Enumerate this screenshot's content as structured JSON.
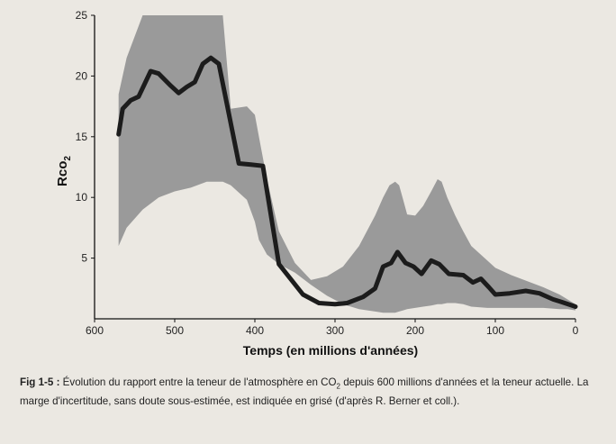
{
  "chart_data": {
    "type": "area",
    "xlabel": "Temps (en millions d'années)",
    "ylabel_main": "Rco",
    "ylabel_sub": "2",
    "xlim": [
      600,
      0
    ],
    "ylim": [
      0,
      25
    ],
    "x_ticks": [
      600,
      500,
      400,
      300,
      200,
      100,
      0
    ],
    "y_ticks": [
      5,
      10,
      15,
      20,
      25
    ],
    "grid": false,
    "fill_color": "#9a9a9a",
    "line_color": "#1c1c1c",
    "central_line": {
      "x": [
        570,
        565,
        555,
        545,
        530,
        520,
        505,
        495,
        485,
        475,
        465,
        455,
        445,
        420,
        405,
        390,
        370,
        340,
        320,
        300,
        285,
        265,
        250,
        240,
        230,
        222,
        212,
        202,
        192,
        180,
        170,
        158,
        140,
        128,
        118,
        108,
        100,
        82,
        62,
        45,
        28,
        18,
        0
      ],
      "y": [
        15.2,
        17.3,
        18.0,
        18.3,
        20.4,
        20.2,
        19.2,
        18.6,
        19.1,
        19.5,
        21.0,
        21.5,
        21.0,
        12.8,
        12.7,
        12.6,
        4.5,
        2.0,
        1.3,
        1.2,
        1.3,
        1.8,
        2.5,
        4.3,
        4.6,
        5.5,
        4.6,
        4.3,
        3.7,
        4.8,
        4.5,
        3.7,
        3.6,
        3.0,
        3.3,
        2.6,
        2.0,
        2.1,
        2.3,
        2.1,
        1.6,
        1.4,
        1.0
      ]
    },
    "uncertainty_band": {
      "x": [
        570,
        560,
        540,
        520,
        500,
        480,
        460,
        440,
        430,
        410,
        400,
        395,
        385,
        370,
        350,
        330,
        310,
        290,
        270,
        250,
        240,
        232,
        225,
        220,
        215,
        210,
        200,
        190,
        180,
        172,
        167,
        160,
        150,
        140,
        130,
        110,
        100,
        80,
        60,
        40,
        20,
        10,
        0
      ],
      "upper": [
        18.5,
        21.5,
        25,
        25,
        25,
        25,
        25,
        25,
        17.3,
        17.5,
        16.8,
        15.0,
        11.5,
        7.2,
        4.6,
        3.2,
        3.5,
        4.3,
        6.0,
        8.5,
        10.0,
        11.0,
        11.3,
        11.0,
        9.8,
        8.6,
        8.5,
        9.3,
        10.5,
        11.5,
        11.3,
        10.0,
        8.5,
        7.2,
        6.0,
        4.8,
        4.2,
        3.6,
        3.1,
        2.6,
        2.0,
        1.6,
        1.2
      ],
      "lower": [
        6.0,
        7.5,
        9.0,
        10.0,
        10.5,
        10.8,
        11.3,
        11.3,
        11.0,
        9.8,
        8.0,
        6.5,
        5.3,
        4.5,
        3.8,
        2.8,
        1.9,
        1.2,
        0.8,
        0.6,
        0.5,
        0.5,
        0.5,
        0.6,
        0.7,
        0.8,
        0.9,
        1.0,
        1.1,
        1.2,
        1.2,
        1.3,
        1.3,
        1.2,
        1.0,
        0.9,
        0.9,
        0.9,
        0.9,
        0.9,
        0.8,
        0.8,
        0.7
      ]
    }
  },
  "caption": {
    "label": "Fig 1-5 :",
    "text_before_sub": " Évolution du rapport entre la teneur de l'atmosphère en CO",
    "sub": "2",
    "text_after_sub": " depuis 600 millions d'années et la teneur actuelle. La marge d'incertitude, sans doute sous-estimée, est indiquée en grisé (d'après R. Berner et coll.)."
  }
}
